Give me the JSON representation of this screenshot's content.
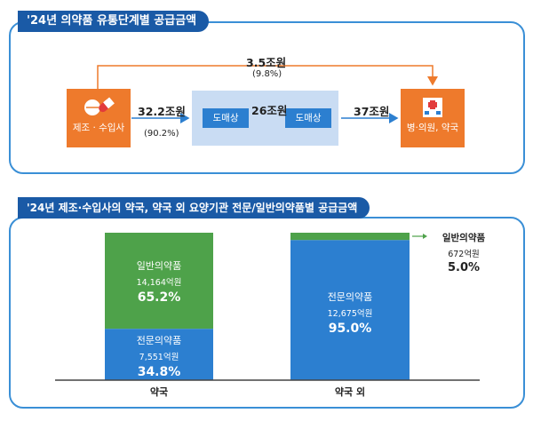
{
  "flow": {
    "title": "'24년 의약품 유통단계별 공급금액",
    "source_label": "제조 · 수입사",
    "dist_label_1": "도매상",
    "dist_label_2": "도매상",
    "dest_label": "병·의원, 약국",
    "direct_amount": "3.5조원",
    "direct_pct": "(9.8%)",
    "to_wholesale_amount": "32.2조원",
    "to_wholesale_pct": "(90.2%)",
    "between_wholesale_amount": "26조원",
    "to_dest_amount": "37조원",
    "colors": {
      "accent": "#ee7a2c",
      "blue": "#2c7fd0",
      "panel_border": "#3a8fd6",
      "header": "#1a5aa6"
    },
    "icons": [
      "pill-capsule-icon",
      "hospital-building-icon"
    ]
  },
  "chart": {
    "title": "'24년 제조·수입사의 약국, 약국 외 요양기관 전문/일반의약품별 공급금액"
  },
  "chart_data": {
    "type": "bar",
    "stacked": true,
    "normalized_percent": true,
    "categories": [
      "약국",
      "약국 외"
    ],
    "series": [
      {
        "name": "전문의약품",
        "color": "#2c7fd0",
        "values": [
          34.8,
          95.0
        ],
        "amounts": [
          "7,551억원",
          "12,675억원"
        ],
        "labels": [
          "34.8%",
          "95.0%"
        ]
      },
      {
        "name": "일반의약품",
        "color": "#4ea24a",
        "values": [
          65.2,
          5.0
        ],
        "amounts": [
          "14,164억원",
          "672억원"
        ],
        "labels": [
          "65.2%",
          "5.0%"
        ]
      }
    ],
    "ylim": [
      0,
      100
    ],
    "title": "'24년 제조·수입사의 약국, 약국 외 요양기관 전문/일반의약품별 공급금액",
    "xlabel": "",
    "ylabel": ""
  }
}
